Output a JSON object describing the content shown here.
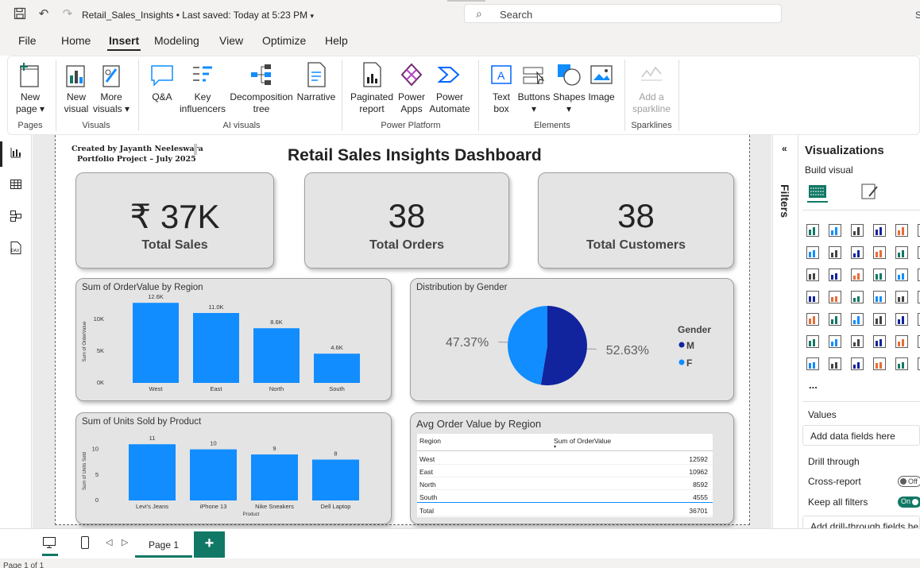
{
  "titlebar": {
    "doc_title": "Retail_Sales_Insights",
    "saved": "•  Last saved: Today at 5:23 PM",
    "search_placeholder": "Search",
    "user_initial": "S"
  },
  "menu": {
    "items": [
      "File",
      "Home",
      "Insert",
      "Modeling",
      "View",
      "Optimize",
      "Help"
    ],
    "active": "Insert"
  },
  "ribbon": {
    "buttons": {
      "new_page": [
        "New",
        "page ▾"
      ],
      "new_visual": [
        "New",
        "visual"
      ],
      "more_visuals": [
        "More",
        "visuals ▾"
      ],
      "qa": [
        "Q&A"
      ],
      "key_influencers": [
        "Key",
        "influencers"
      ],
      "decomposition_tree": [
        "Decomposition",
        "tree"
      ],
      "narrative": [
        "Narrative"
      ],
      "paginated_report": [
        "Paginated",
        "report"
      ],
      "power_apps": [
        "Power",
        "Apps"
      ],
      "power_automate": [
        "Power",
        "Automate"
      ],
      "text_box": [
        "Text",
        "box"
      ],
      "buttons": [
        "Buttons",
        "▾"
      ],
      "shapes": [
        "Shapes",
        "▾"
      ],
      "image": [
        "Image"
      ],
      "sparkline": [
        "Add a",
        "sparkline"
      ]
    },
    "groups": [
      "Pages",
      "Visuals",
      "AI visuals",
      "Power Platform",
      "Elements",
      "Sparklines"
    ]
  },
  "report": {
    "credit_line1": "Created by Jayanth Neeleswara",
    "credit_line2": "Portfolio Project – July 2025",
    "title": "Retail Sales Insights Dashboard",
    "kpis": [
      {
        "value": "₹ 37K",
        "label": "Total Sales"
      },
      {
        "value": "38",
        "label": "Total Orders"
      },
      {
        "value": "38",
        "label": "Total Customers"
      }
    ],
    "region_title": "Sum of OrderValue by Region",
    "gender_title": "Distribution by Gender",
    "units_title": "Sum of Units Sold by Product",
    "table_title": "Avg Order Value by Region",
    "table": {
      "headers": [
        "Region",
        "Sum of OrderValue"
      ],
      "rows": [
        [
          "West",
          "12592"
        ],
        [
          "East",
          "10962"
        ],
        [
          "North",
          "8592"
        ],
        [
          "South",
          "4555"
        ]
      ],
      "total": [
        "Total",
        "36701"
      ]
    }
  },
  "chart_data": [
    {
      "type": "bar",
      "title": "Sum of OrderValue by Region",
      "categories": [
        "West",
        "East",
        "North",
        "South"
      ],
      "values": [
        12.6,
        11.0,
        8.6,
        4.6
      ],
      "data_labels": [
        "12.6K",
        "11.0K",
        "8.6K",
        "4.6K"
      ],
      "yticks": [
        "0K",
        "5K",
        "10K"
      ],
      "ylabel": "Sum of OrderValue",
      "xlabel": "",
      "ylim": [
        0,
        13
      ]
    },
    {
      "type": "pie",
      "title": "Distribution by Gender",
      "legend_title": "Gender",
      "labels": [
        "M",
        "F"
      ],
      "values": [
        52.63,
        47.37
      ],
      "data_labels": [
        "52.63%",
        "47.37%"
      ],
      "colors": [
        "#12239e",
        "#118dff"
      ]
    },
    {
      "type": "bar",
      "title": "Sum of Units Sold by Product",
      "categories": [
        "Levi's Jeans",
        "iPhone 13",
        "Nike Sneakers",
        "Dell Laptop"
      ],
      "values": [
        11,
        10,
        9,
        8
      ],
      "data_labels": [
        "11",
        "10",
        "9",
        "8"
      ],
      "yticks": [
        "0",
        "5",
        "10"
      ],
      "ylabel": "Sum of Units Sold",
      "xlabel": "Product",
      "ylim": [
        0,
        11.5
      ]
    }
  ],
  "viz_pane": {
    "title": "Visualizations",
    "build_visual": "Build visual",
    "filters": "Filters",
    "more": "...",
    "values_label": "Values",
    "values_field": "Add data fields here",
    "drill_through": "Drill through",
    "cross_report": "Cross-report",
    "cross_report_state": "Off",
    "keep_filters": "Keep all filters",
    "keep_filters_state": "On",
    "drill_field": "Add drill-through fields here"
  },
  "bottom": {
    "page_tab": "Page 1",
    "add": "+",
    "status": "Page 1 of 1"
  },
  "colors": {
    "accent": "#118dff",
    "dark": "#12239e",
    "brand": "#117865"
  }
}
